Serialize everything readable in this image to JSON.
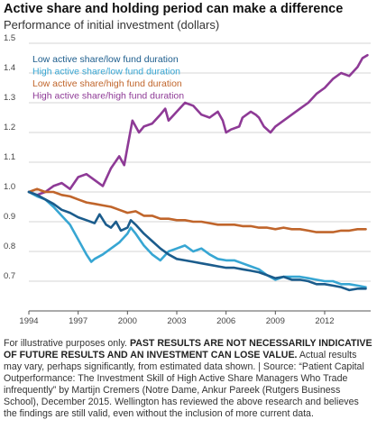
{
  "title": "Active share and holding period can make a difference",
  "subtitle": "Performance of initial investment (dollars)",
  "footnote": {
    "part1": "For illustrative purposes only. ",
    "bold": "PAST RESULTS ARE NOT NECESSARILY INDICATIVE OF FUTURE RESULTS AND AN INVESTMENT CAN LOSE VALUE.",
    "part2": " Actual results may vary, perhaps significantly, from estimated data shown. | Source: “Patient Capital Outperformance: The Investment Skill of High Active Share Managers Who Trade infrequently” by Martijn Cremers (Notre Dame, Ankur Pareek (Rutgers Business School), December 2015. Wellington has reviewed the above research and believes the findings are still valid, even without the inclusion of more current data."
  },
  "chart_data": {
    "type": "line",
    "xlim": [
      1994,
      2014.8
    ],
    "ylim": [
      0.6,
      1.5
    ],
    "x_ticks": [
      1994,
      1997,
      2000,
      2003,
      2006,
      2009,
      2012
    ],
    "x_tick_labels": [
      "1994",
      "1997",
      "2000",
      "2003",
      "2006",
      "2009",
      "2012"
    ],
    "y_ticks": [
      0.7,
      0.8,
      0.9,
      1.0,
      1.1,
      1.2,
      1.3,
      1.4,
      1.5
    ],
    "y_tick_labels": [
      "0.7",
      "0.8",
      "0.9",
      "1.0",
      "1.1",
      "1.2",
      "1.3",
      "1.4",
      "1.5"
    ],
    "grid": true,
    "legend_position": "top-left",
    "series": [
      {
        "name": "Low active share/low fund duration",
        "color": "#1b5c8c",
        "points": [
          [
            1994.0,
            1.0
          ],
          [
            1994.5,
            0.99
          ],
          [
            1995.0,
            0.975
          ],
          [
            1995.5,
            0.96
          ],
          [
            1996.0,
            0.94
          ],
          [
            1996.5,
            0.93
          ],
          [
            1997.0,
            0.915
          ],
          [
            1997.5,
            0.905
          ],
          [
            1998.0,
            0.895
          ],
          [
            1998.3,
            0.925
          ],
          [
            1998.7,
            0.89
          ],
          [
            1999.0,
            0.88
          ],
          [
            1999.3,
            0.9
          ],
          [
            1999.6,
            0.87
          ],
          [
            2000.0,
            0.88
          ],
          [
            2000.2,
            0.905
          ],
          [
            2000.5,
            0.89
          ],
          [
            2001.0,
            0.86
          ],
          [
            2001.5,
            0.835
          ],
          [
            2002.0,
            0.81
          ],
          [
            2002.5,
            0.79
          ],
          [
            2003.0,
            0.775
          ],
          [
            2003.5,
            0.77
          ],
          [
            2004.0,
            0.765
          ],
          [
            2004.5,
            0.76
          ],
          [
            2005.0,
            0.755
          ],
          [
            2005.5,
            0.75
          ],
          [
            2006.0,
            0.745
          ],
          [
            2006.5,
            0.745
          ],
          [
            2007.0,
            0.74
          ],
          [
            2007.5,
            0.735
          ],
          [
            2008.0,
            0.73
          ],
          [
            2008.5,
            0.72
          ],
          [
            2009.0,
            0.71
          ],
          [
            2009.5,
            0.715
          ],
          [
            2010.0,
            0.705
          ],
          [
            2010.5,
            0.705
          ],
          [
            2011.0,
            0.7
          ],
          [
            2011.5,
            0.69
          ],
          [
            2012.0,
            0.69
          ],
          [
            2012.5,
            0.685
          ],
          [
            2013.0,
            0.68
          ],
          [
            2013.5,
            0.67
          ],
          [
            2014.0,
            0.675
          ],
          [
            2014.5,
            0.675
          ]
        ]
      },
      {
        "name": "High active share/low fund duration",
        "color": "#37a6d3",
        "points": [
          [
            1994.0,
            1.0
          ],
          [
            1994.5,
            0.985
          ],
          [
            1995.0,
            0.975
          ],
          [
            1995.5,
            0.95
          ],
          [
            1996.0,
            0.92
          ],
          [
            1996.5,
            0.89
          ],
          [
            1997.0,
            0.84
          ],
          [
            1997.5,
            0.79
          ],
          [
            1997.8,
            0.765
          ],
          [
            1998.0,
            0.775
          ],
          [
            1998.5,
            0.79
          ],
          [
            1999.0,
            0.81
          ],
          [
            1999.5,
            0.83
          ],
          [
            2000.0,
            0.86
          ],
          [
            2000.2,
            0.88
          ],
          [
            2000.5,
            0.86
          ],
          [
            2001.0,
            0.82
          ],
          [
            2001.5,
            0.79
          ],
          [
            2002.0,
            0.77
          ],
          [
            2002.5,
            0.8
          ],
          [
            2003.0,
            0.81
          ],
          [
            2003.5,
            0.82
          ],
          [
            2004.0,
            0.8
          ],
          [
            2004.5,
            0.81
          ],
          [
            2005.0,
            0.79
          ],
          [
            2005.5,
            0.775
          ],
          [
            2006.0,
            0.77
          ],
          [
            2006.5,
            0.77
          ],
          [
            2007.0,
            0.76
          ],
          [
            2007.5,
            0.75
          ],
          [
            2008.0,
            0.74
          ],
          [
            2008.5,
            0.72
          ],
          [
            2009.0,
            0.705
          ],
          [
            2009.5,
            0.715
          ],
          [
            2010.0,
            0.715
          ],
          [
            2010.5,
            0.715
          ],
          [
            2011.0,
            0.71
          ],
          [
            2011.5,
            0.705
          ],
          [
            2012.0,
            0.7
          ],
          [
            2012.5,
            0.7
          ],
          [
            2013.0,
            0.69
          ],
          [
            2013.5,
            0.69
          ],
          [
            2014.0,
            0.685
          ],
          [
            2014.5,
            0.68
          ]
        ]
      },
      {
        "name": "Low active share/high fund duration",
        "color": "#c0652b",
        "points": [
          [
            1994.0,
            1.0
          ],
          [
            1994.5,
            1.01
          ],
          [
            1995.0,
            1.0
          ],
          [
            1995.5,
            1.0
          ],
          [
            1996.0,
            0.99
          ],
          [
            1996.5,
            0.985
          ],
          [
            1997.0,
            0.975
          ],
          [
            1997.5,
            0.965
          ],
          [
            1998.0,
            0.96
          ],
          [
            1998.5,
            0.955
          ],
          [
            1999.0,
            0.95
          ],
          [
            1999.5,
            0.94
          ],
          [
            2000.0,
            0.93
          ],
          [
            2000.5,
            0.935
          ],
          [
            2001.0,
            0.92
          ],
          [
            2001.5,
            0.92
          ],
          [
            2002.0,
            0.91
          ],
          [
            2002.5,
            0.91
          ],
          [
            2003.0,
            0.905
          ],
          [
            2003.5,
            0.905
          ],
          [
            2004.0,
            0.9
          ],
          [
            2004.5,
            0.9
          ],
          [
            2005.0,
            0.895
          ],
          [
            2005.5,
            0.89
          ],
          [
            2006.0,
            0.89
          ],
          [
            2006.5,
            0.89
          ],
          [
            2007.0,
            0.885
          ],
          [
            2007.5,
            0.885
          ],
          [
            2008.0,
            0.88
          ],
          [
            2008.5,
            0.88
          ],
          [
            2009.0,
            0.875
          ],
          [
            2009.5,
            0.88
          ],
          [
            2010.0,
            0.875
          ],
          [
            2010.5,
            0.875
          ],
          [
            2011.0,
            0.87
          ],
          [
            2011.5,
            0.865
          ],
          [
            2012.0,
            0.865
          ],
          [
            2012.5,
            0.865
          ],
          [
            2013.0,
            0.87
          ],
          [
            2013.5,
            0.87
          ],
          [
            2014.0,
            0.875
          ],
          [
            2014.5,
            0.875
          ]
        ]
      },
      {
        "name": "High active share/high fund duration",
        "color": "#8e3a96",
        "points": [
          [
            1994.0,
            1.0
          ],
          [
            1994.5,
            0.99
          ],
          [
            1995.0,
            1.0
          ],
          [
            1995.5,
            1.02
          ],
          [
            1996.0,
            1.03
          ],
          [
            1996.5,
            1.01
          ],
          [
            1997.0,
            1.05
          ],
          [
            1997.5,
            1.06
          ],
          [
            1998.0,
            1.04
          ],
          [
            1998.5,
            1.02
          ],
          [
            1999.0,
            1.08
          ],
          [
            1999.5,
            1.12
          ],
          [
            1999.8,
            1.09
          ],
          [
            2000.0,
            1.15
          ],
          [
            2000.3,
            1.24
          ],
          [
            2000.7,
            1.2
          ],
          [
            2001.0,
            1.22
          ],
          [
            2001.5,
            1.23
          ],
          [
            2002.0,
            1.26
          ],
          [
            2002.3,
            1.28
          ],
          [
            2002.5,
            1.24
          ],
          [
            2003.0,
            1.27
          ],
          [
            2003.5,
            1.3
          ],
          [
            2004.0,
            1.29
          ],
          [
            2004.5,
            1.26
          ],
          [
            2005.0,
            1.25
          ],
          [
            2005.5,
            1.27
          ],
          [
            2005.8,
            1.24
          ],
          [
            2006.0,
            1.2
          ],
          [
            2006.3,
            1.21
          ],
          [
            2006.8,
            1.22
          ],
          [
            2007.0,
            1.25
          ],
          [
            2007.5,
            1.27
          ],
          [
            2007.8,
            1.26
          ],
          [
            2008.0,
            1.25
          ],
          [
            2008.3,
            1.22
          ],
          [
            2008.7,
            1.2
          ],
          [
            2009.0,
            1.22
          ],
          [
            2009.5,
            1.24
          ],
          [
            2010.0,
            1.26
          ],
          [
            2010.5,
            1.28
          ],
          [
            2011.0,
            1.3
          ],
          [
            2011.5,
            1.33
          ],
          [
            2012.0,
            1.35
          ],
          [
            2012.5,
            1.38
          ],
          [
            2013.0,
            1.4
          ],
          [
            2013.5,
            1.39
          ],
          [
            2014.0,
            1.42
          ],
          [
            2014.3,
            1.45
          ],
          [
            2014.6,
            1.46
          ]
        ]
      }
    ]
  }
}
